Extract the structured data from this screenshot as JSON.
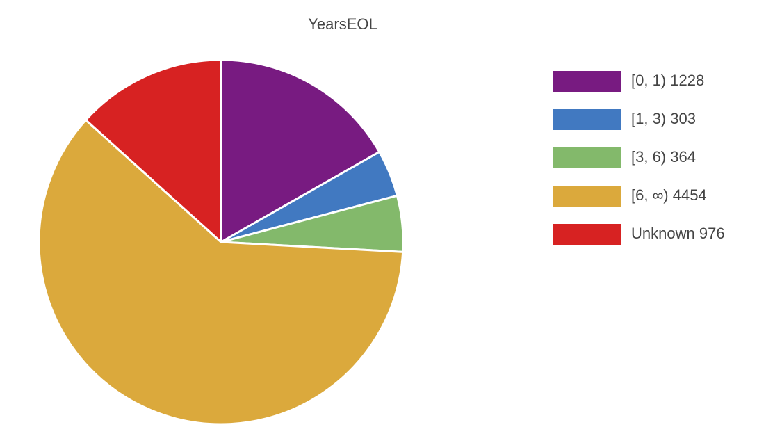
{
  "chart_data": {
    "type": "pie",
    "title": "YearsEOL",
    "categories": [
      "[0, 1)",
      "[1, 3)",
      "[3, 6)",
      "[6, ∞)",
      "Unknown"
    ],
    "values": [
      1228,
      303,
      364,
      4454,
      976
    ],
    "colors": [
      "#781b81",
      "#4179c1",
      "#83b96b",
      "#dba93c",
      "#d72222"
    ],
    "legend": "right"
  }
}
